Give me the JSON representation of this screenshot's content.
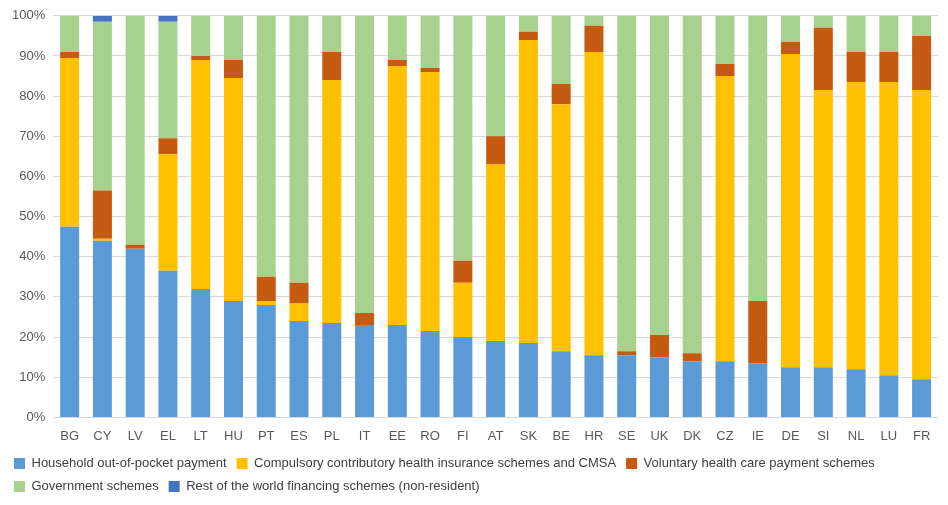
{
  "chart_data": {
    "type": "bar",
    "stacked": true,
    "grid": true,
    "legend": "bottom",
    "categories": [
      "BG",
      "CY",
      "LV",
      "EL",
      "LT",
      "HU",
      "PT",
      "ES",
      "PL",
      "IT",
      "EE",
      "RO",
      "FI",
      "AT",
      "SK",
      "BE",
      "HR",
      "SE",
      "UK",
      "DK",
      "CZ",
      "IE",
      "DE",
      "SI",
      "NL",
      "LU",
      "FR"
    ],
    "series": [
      {
        "name": "Household out-of-pocket payment",
        "color": "#5B9BD5",
        "values": [
          47.5,
          44,
          42,
          36.5,
          32,
          29,
          28,
          24,
          23.5,
          23,
          23,
          21.5,
          20,
          19,
          18.5,
          16.5,
          15.5,
          15.5,
          15,
          14,
          14,
          13.5,
          12.5,
          12.5,
          12,
          10.5,
          9.5
        ]
      },
      {
        "name": "Compulsory contributory health insurance schemes and CMSA",
        "color": "#FFC000",
        "values": [
          42,
          0.5,
          0,
          29,
          57,
          55.5,
          1,
          4.5,
          60.5,
          0,
          64.5,
          64.5,
          13.5,
          44,
          75.5,
          61.5,
          75.5,
          0,
          0,
          0,
          71,
          0,
          78,
          69,
          71.5,
          73,
          72
        ]
      },
      {
        "name": "Voluntary health care payment schemes",
        "color": "#C55A11",
        "values": [
          1.5,
          12,
          1,
          4,
          1,
          4.5,
          6,
          5,
          7,
          3,
          1.5,
          1,
          5.5,
          7,
          2,
          5,
          6.5,
          1,
          5.5,
          2,
          3,
          15.5,
          3,
          15.5,
          7.5,
          7.5,
          13.5
        ]
      },
      {
        "name": "Government schemes",
        "color": "#A9D18E",
        "values": [
          9,
          42,
          57,
          29,
          10,
          11,
          65,
          66.5,
          9,
          74,
          11,
          13,
          61,
          30,
          4,
          17,
          2.5,
          83.5,
          79.5,
          84,
          12,
          71,
          6.5,
          3,
          9,
          9,
          5
        ]
      },
      {
        "name": "Rest of the world financing schemes (non-resident)",
        "color": "#4472C4",
        "values": [
          0,
          1.5,
          0,
          1.5,
          0,
          0,
          0,
          0,
          0,
          0,
          0,
          0,
          0,
          0,
          0,
          0,
          0,
          0,
          0,
          0,
          0,
          0,
          0,
          0,
          0,
          0,
          0
        ]
      }
    ],
    "ylim": [
      0,
      100
    ],
    "yticks": [
      {
        "value": 0,
        "label": "0%"
      },
      {
        "value": 10,
        "label": "10%"
      },
      {
        "value": 20,
        "label": "20%"
      },
      {
        "value": 30,
        "label": "30%"
      },
      {
        "value": 40,
        "label": "40%"
      },
      {
        "value": 50,
        "label": "50%"
      },
      {
        "value": 60,
        "label": "60%"
      },
      {
        "value": 70,
        "label": "70%"
      },
      {
        "value": 80,
        "label": "80%"
      },
      {
        "value": 90,
        "label": "90%"
      },
      {
        "value": 100,
        "label": "100%"
      }
    ]
  }
}
